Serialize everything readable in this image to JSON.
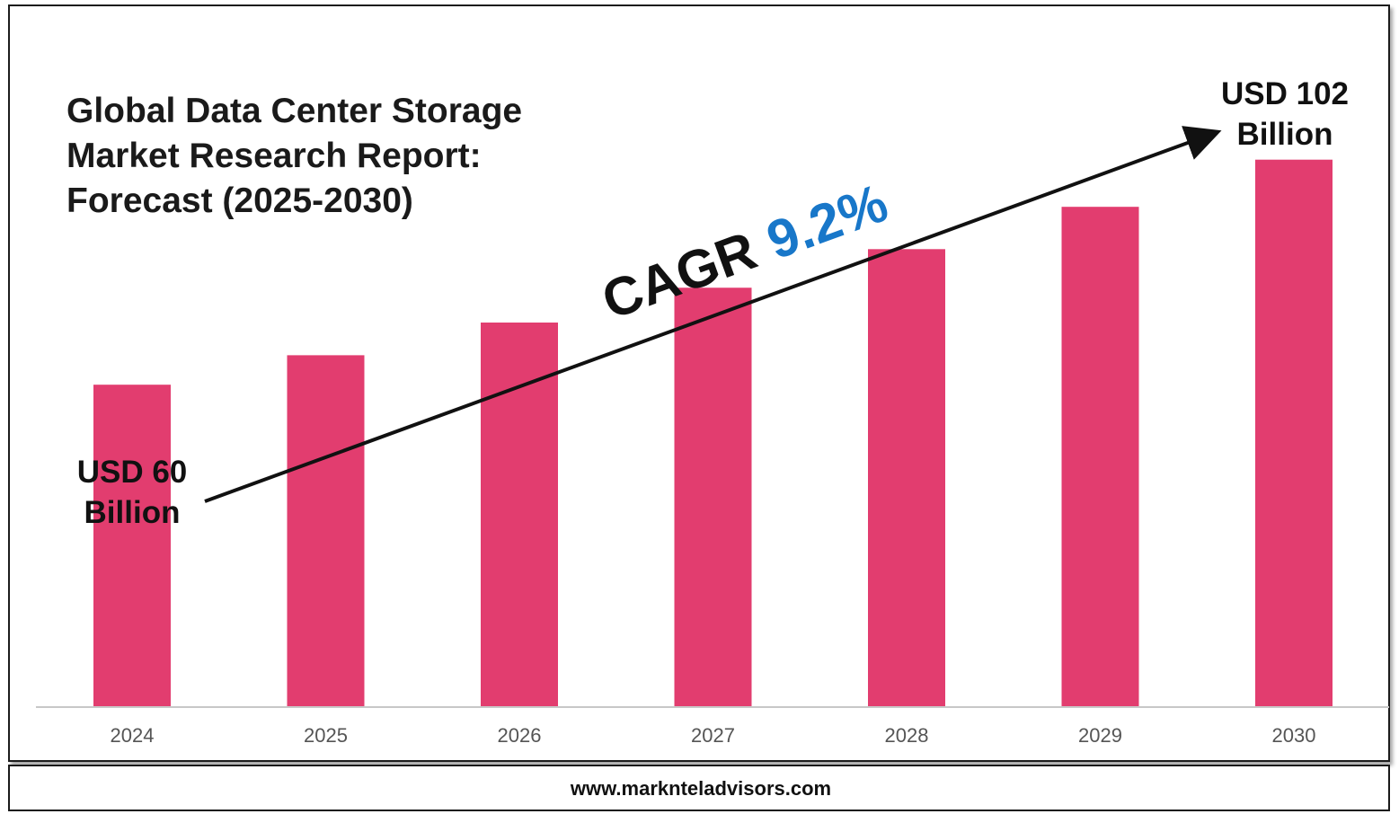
{
  "colors": {
    "bar": "#e23d6f",
    "cagr_value": "#1877c9",
    "text": "#111111",
    "axis_tick": "#555555",
    "frame": "#1a1a1a"
  },
  "chart_data": {
    "type": "bar",
    "title_lines": [
      "Global Data Center Storage",
      "Market Research Report:",
      "Forecast (2025-2030)"
    ],
    "categories": [
      "2024",
      "2025",
      "2026",
      "2027",
      "2028",
      "2029",
      "2030"
    ],
    "values": [
      60,
      65.5,
      71.6,
      78.1,
      85.3,
      93.2,
      102
    ],
    "value_unit": "USD Billion",
    "ylim": [
      0,
      110
    ],
    "grid": false,
    "legend": "none",
    "annotations": {
      "start_line1": "USD 60",
      "start_line2": "Billion",
      "end_line1": "USD 102",
      "end_line2": "Billion",
      "cagr_label": "CAGR",
      "cagr_value": "9.2%"
    }
  },
  "footer": {
    "url": "www.marknteladvisors.com"
  }
}
